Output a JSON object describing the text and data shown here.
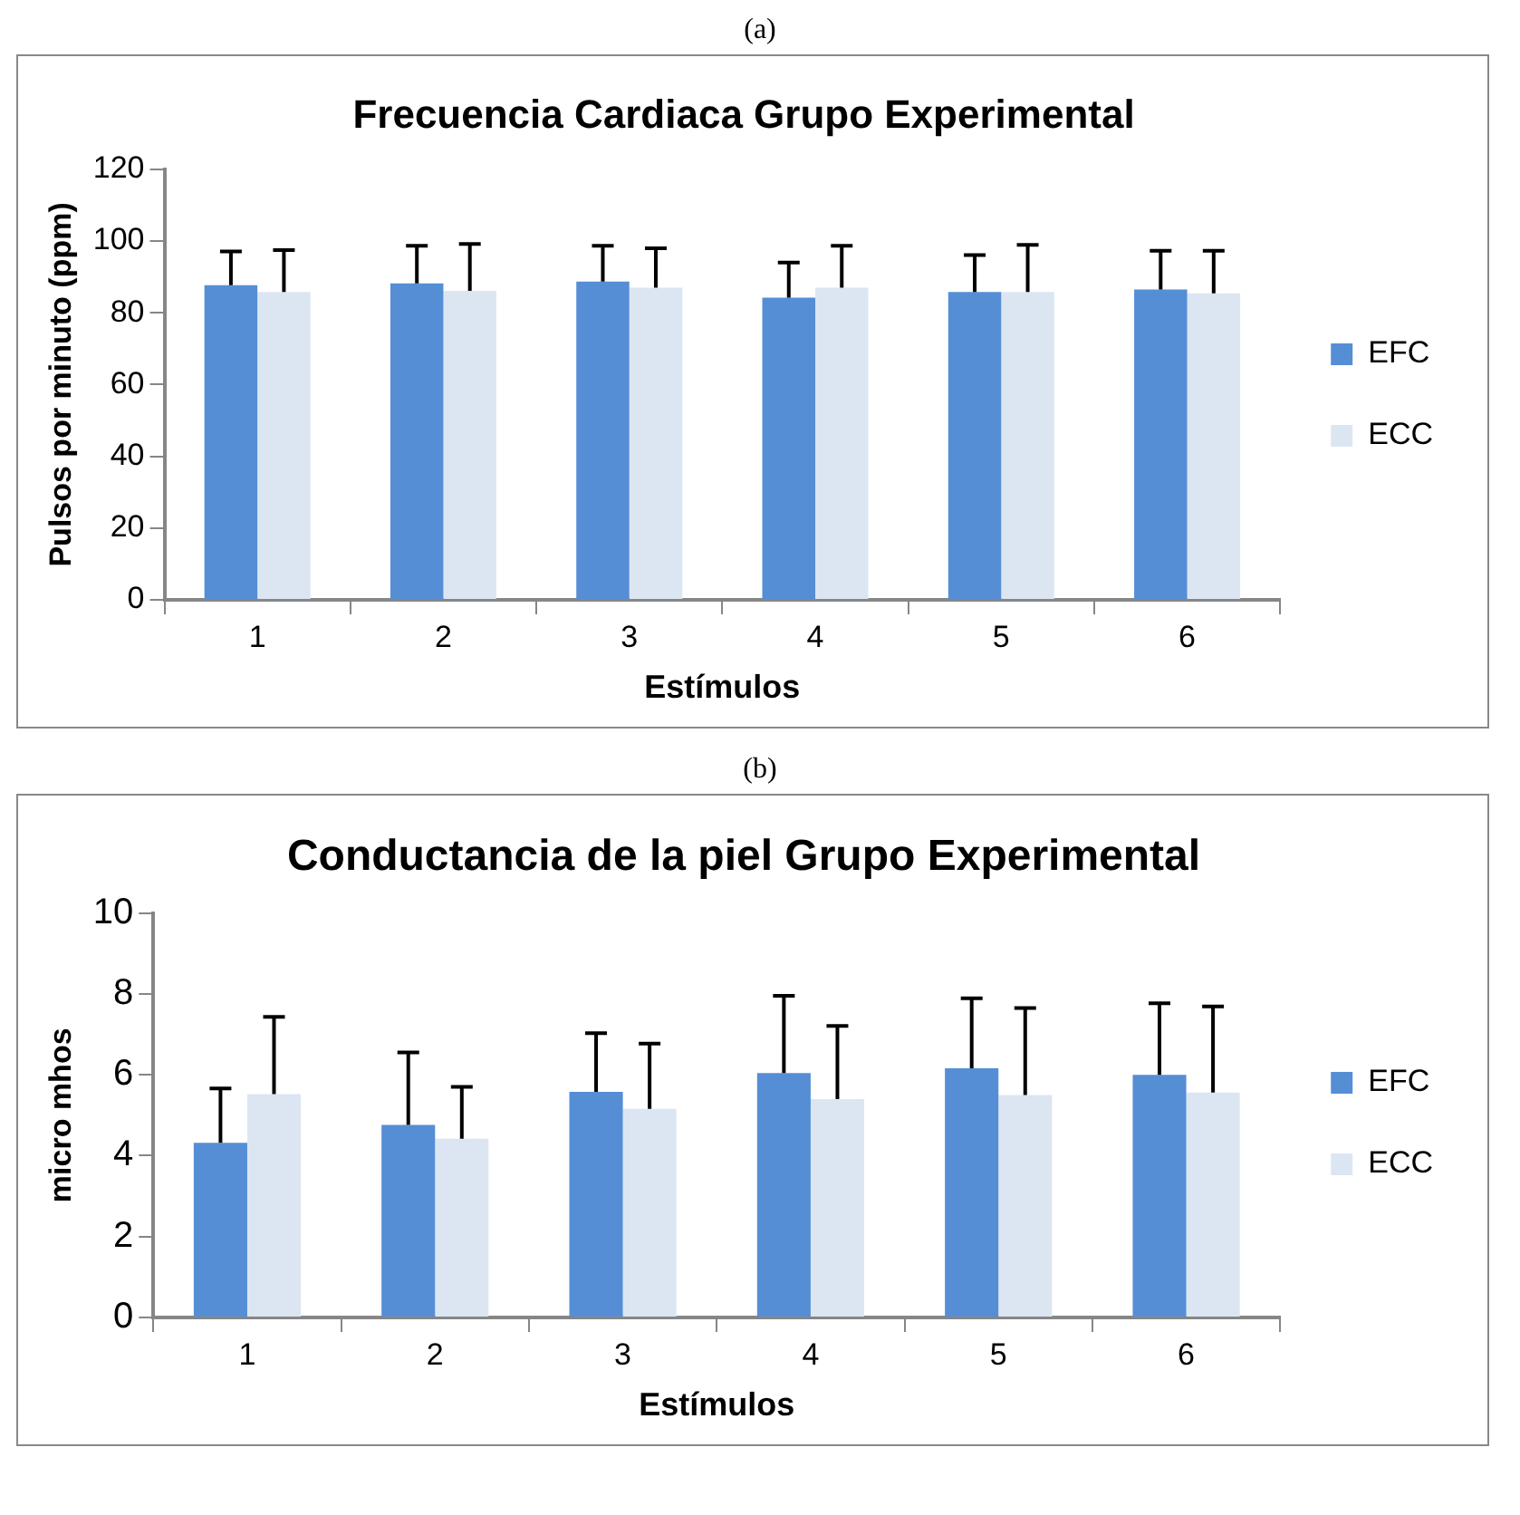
{
  "chart_data": [
    {
      "type": "bar",
      "title": "Frecuencia Cardiaca Grupo Experimental",
      "xlabel": "Estímulos",
      "ylabel": "Pulsos por minuto (ppm)",
      "annotations": [
        "(a)"
      ],
      "categories": [
        "1",
        "2",
        "3",
        "4",
        "5",
        "6"
      ],
      "ylim": [
        0,
        120
      ],
      "yticks": [
        0,
        20,
        40,
        60,
        80,
        100,
        120
      ],
      "grid": false,
      "legend": "right",
      "series": [
        {
          "name": "EFC",
          "color": "#558ed5",
          "values": [
            87.7,
            88.2,
            88.7,
            84.2,
            85.8,
            86.5
          ],
          "errors": [
            [
              87.7,
              97.1
            ],
            [
              88.2,
              98.7
            ],
            [
              88.7,
              98.7
            ],
            [
              84.2,
              94.0
            ],
            [
              85.8,
              96.1
            ],
            [
              86.5,
              97.3
            ]
          ]
        },
        {
          "name": "ECC",
          "color": "#dce6f2",
          "values": [
            85.8,
            86.1,
            87.0,
            87.0,
            85.8,
            85.4
          ],
          "errors": [
            [
              85.8,
              97.5
            ],
            [
              86.1,
              99.2
            ],
            [
              87.0,
              98.0
            ],
            [
              87.0,
              98.7
            ],
            [
              85.8,
              98.9
            ],
            [
              85.4,
              97.3
            ]
          ]
        }
      ]
    },
    {
      "type": "bar",
      "title": "Conductancia de la piel Grupo Experimental",
      "xlabel": "Estímulos",
      "ylabel": "micro mhos",
      "annotations": [
        "(b)"
      ],
      "categories": [
        "1",
        "2",
        "3",
        "4",
        "5",
        "6"
      ],
      "ylim": [
        0,
        10
      ],
      "yticks": [
        0,
        2,
        4,
        6,
        8,
        10
      ],
      "grid": false,
      "legend": "right",
      "series": [
        {
          "name": "EFC",
          "color": "#558ed5",
          "values": [
            4.32,
            4.76,
            5.58,
            6.04,
            6.16,
            6.0
          ],
          "errors": [
            [
              4.32,
              5.66
            ],
            [
              4.76,
              6.55
            ],
            [
              5.58,
              7.03
            ],
            [
              6.04,
              7.95
            ],
            [
              6.16,
              7.89
            ],
            [
              6.0,
              7.77
            ]
          ]
        },
        {
          "name": "ECC",
          "color": "#dce6f2",
          "values": [
            5.52,
            4.42,
            5.16,
            5.4,
            5.5,
            5.56
          ],
          "errors": [
            [
              5.52,
              7.43
            ],
            [
              4.42,
              5.7
            ],
            [
              5.16,
              6.77
            ],
            [
              5.4,
              7.21
            ],
            [
              5.5,
              7.65
            ],
            [
              5.56,
              7.69
            ]
          ]
        }
      ]
    }
  ]
}
